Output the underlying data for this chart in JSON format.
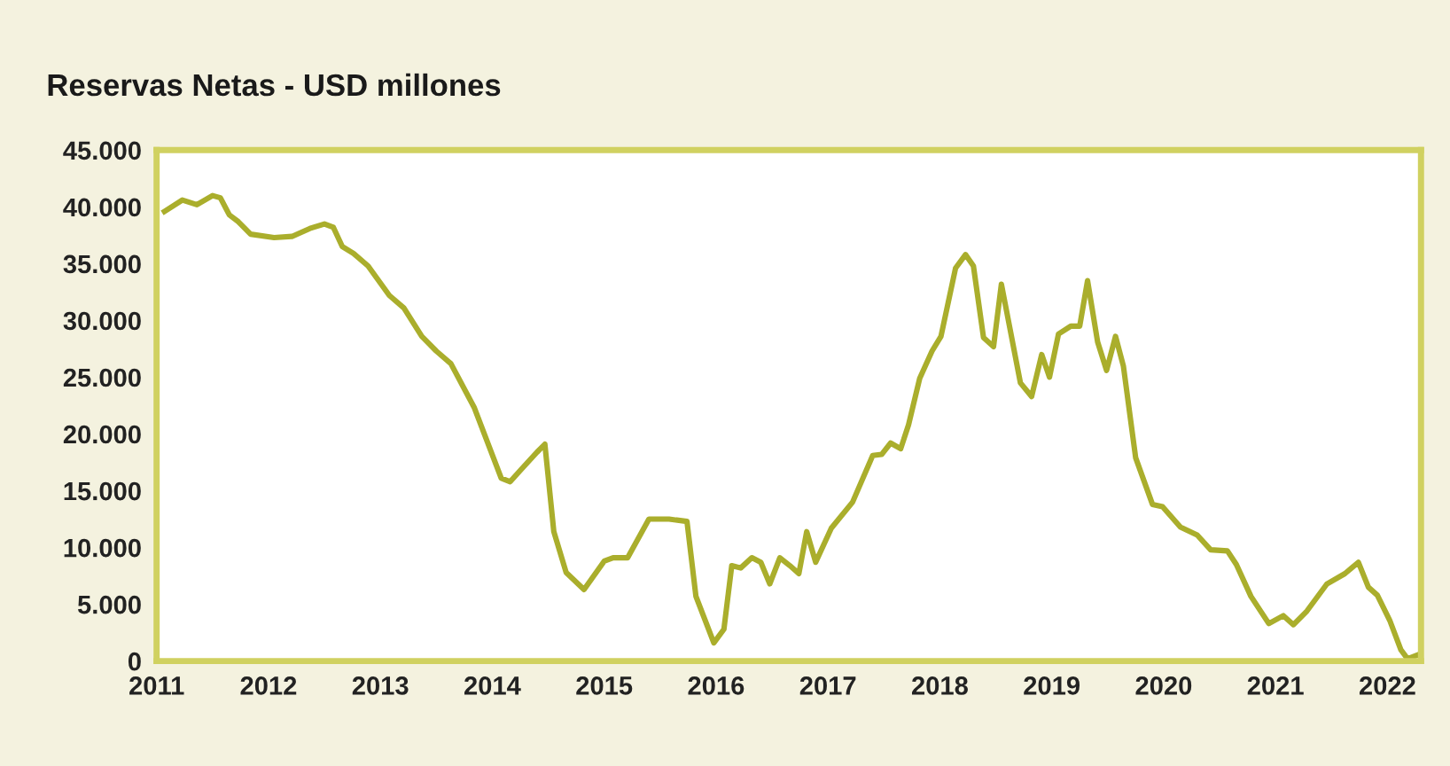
{
  "chart_data": {
    "type": "line",
    "title": "Reservas Netas - USD millones",
    "x": [
      2011.07,
      2011.23,
      2011.36,
      2011.5,
      2011.57,
      2011.65,
      2011.73,
      2011.84,
      2012.05,
      2012.21,
      2012.37,
      2012.5,
      2012.58,
      2012.66,
      2012.76,
      2012.89,
      2013.08,
      2013.21,
      2013.37,
      2013.5,
      2013.63,
      2013.84,
      2014.08,
      2014.16,
      2014.26,
      2014.4,
      2014.47,
      2014.55,
      2014.66,
      2014.82,
      2015.0,
      2015.08,
      2015.21,
      2015.4,
      2015.58,
      2015.74,
      2015.82,
      2015.98,
      2016.07,
      2016.14,
      2016.22,
      2016.32,
      2016.4,
      2016.48,
      2016.57,
      2016.66,
      2016.74,
      2016.81,
      2016.89,
      2017.03,
      2017.22,
      2017.4,
      2017.48,
      2017.56,
      2017.65,
      2017.72,
      2017.82,
      2017.93,
      2018.01,
      2018.14,
      2018.23,
      2018.3,
      2018.39,
      2018.48,
      2018.55,
      2018.72,
      2018.82,
      2018.91,
      2018.98,
      2019.06,
      2019.17,
      2019.25,
      2019.32,
      2019.41,
      2019.49,
      2019.57,
      2019.64,
      2019.75,
      2019.9,
      2019.99,
      2020.15,
      2020.3,
      2020.42,
      2020.57,
      2020.65,
      2020.78,
      2020.94,
      2021.07,
      2021.16,
      2021.28,
      2021.46,
      2021.62,
      2021.74,
      2021.83,
      2021.91,
      2022.02,
      2022.12,
      2022.18,
      2022.26
    ],
    "series": [
      {
        "color": "#aaae2c",
        "values": [
          39600,
          40600,
          40200,
          41000,
          40800,
          39300,
          38700,
          37600,
          37300,
          37400,
          38100,
          38500,
          38200,
          36500,
          35900,
          34800,
          32200,
          31100,
          28600,
          27300,
          26200,
          22300,
          16100,
          15800,
          16900,
          18400,
          19100,
          11400,
          7800,
          6300,
          8800,
          9100,
          9100,
          12500,
          12500,
          12300,
          5700,
          1600,
          2800,
          8400,
          8200,
          9100,
          8700,
          6800,
          9100,
          8400,
          7700,
          11400,
          8700,
          11700,
          14000,
          18100,
          18200,
          19200,
          18700,
          20800,
          24900,
          27300,
          28600,
          34600,
          35800,
          34800,
          28500,
          27700,
          33200,
          24500,
          23300,
          27000,
          25000,
          28800,
          29500,
          29500,
          33500,
          28100,
          25600,
          28600,
          26000,
          17900,
          13800,
          13600,
          11800,
          11100,
          9800,
          9700,
          8500,
          5700,
          3300,
          4000,
          3200,
          4400,
          6800,
          7700,
          8700,
          6500,
          5800,
          3600,
          1000,
          200,
          500
        ]
      }
    ],
    "xlim": [
      2011,
      2022.3
    ],
    "xticks": [
      2011,
      2012,
      2013,
      2014,
      2015,
      2016,
      2017,
      2018,
      2019,
      2020,
      2021,
      2022
    ],
    "ylim": [
      0,
      45000
    ],
    "yticks": [
      0,
      {
        "value": 5000,
        "label": "5.000"
      },
      {
        "value": 10000,
        "label": "10.000"
      },
      {
        "value": 15000,
        "label": "15.000"
      },
      {
        "value": 20000,
        "label": "20.000"
      },
      {
        "value": 25000,
        "label": "25.000"
      },
      {
        "value": 30000,
        "label": "30.000"
      },
      {
        "value": 35000,
        "label": "35.000"
      },
      {
        "value": 40000,
        "label": "40.000"
      },
      {
        "value": 45000,
        "label": "45.000"
      }
    ],
    "grid": false,
    "marker": "none",
    "line_style": "solid"
  }
}
